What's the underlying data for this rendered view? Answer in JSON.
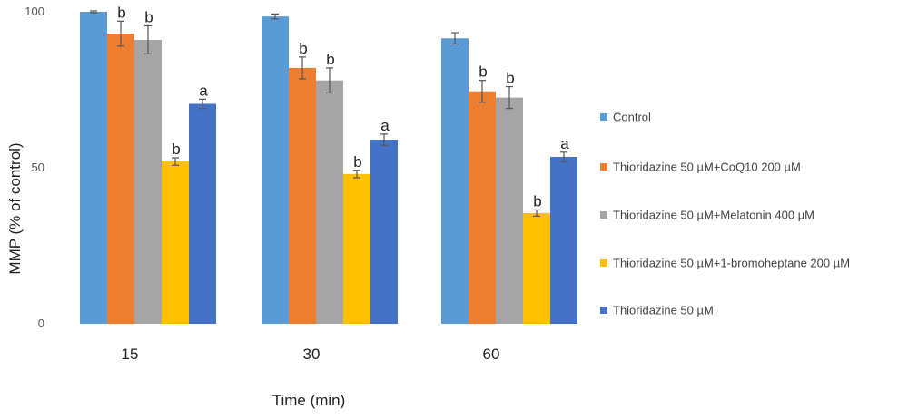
{
  "chart_data": {
    "type": "bar",
    "xlabel": "Time (min)",
    "ylabel": "MMP (% of control)",
    "ylim": [
      0,
      100
    ],
    "yticks": [
      0,
      50,
      100
    ],
    "categories": [
      "15",
      "30",
      "60"
    ],
    "legend_position": "right",
    "series": [
      {
        "name": "Control",
        "color": "#5B9BD5",
        "values": [
          100,
          98.5,
          91.5
        ],
        "errors": [
          0.3,
          0.8,
          1.8
        ],
        "sig": [
          "",
          "",
          ""
        ]
      },
      {
        "name": "Thioridazine 50 µM+CoQ10 200 µM",
        "color": "#ED7D31",
        "values": [
          93,
          82,
          74.5
        ],
        "errors": [
          4,
          3.5,
          3.5
        ],
        "sig": [
          "b",
          "b",
          "b"
        ]
      },
      {
        "name": "Thioridazine 50 µM+Melatonin 400 µM",
        "color": "#A5A5A5",
        "values": [
          91,
          78,
          72.5
        ],
        "errors": [
          4.5,
          4,
          3.5
        ],
        "sig": [
          "b",
          "b",
          "b"
        ]
      },
      {
        "name": "Thioridazine 50 µM+1-bromoheptane 200 µM",
        "color": "#FFC000",
        "values": [
          52,
          48,
          35.5
        ],
        "errors": [
          1.2,
          1.2,
          1
        ],
        "sig": [
          "b",
          "b",
          "b"
        ]
      },
      {
        "name": "Thioridazine 50 µM",
        "color": "#4472C4",
        "values": [
          70.5,
          59,
          53.5
        ],
        "errors": [
          1.5,
          1.8,
          1.5
        ],
        "sig": [
          "a",
          "a",
          "a"
        ]
      }
    ]
  }
}
